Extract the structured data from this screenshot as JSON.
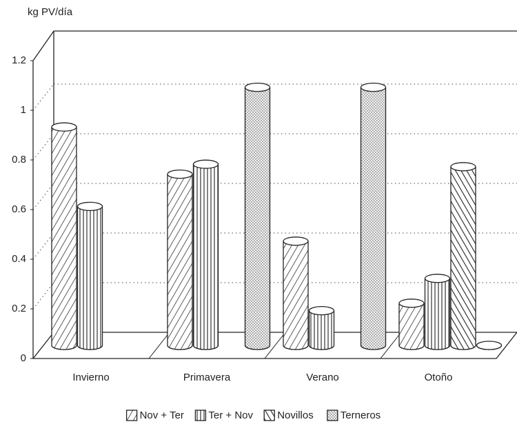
{
  "chart_data": {
    "type": "bar3d",
    "y_label": "kg PV/día",
    "categories": [
      "Invierno",
      "Primavera",
      "Verano",
      "Otoño"
    ],
    "series": [
      {
        "name": "Nov + Ter",
        "pattern": "diag",
        "values": [
          0.88,
          0.69,
          0.42,
          0.17
        ]
      },
      {
        "name": "Ter + Nov",
        "pattern": "vert",
        "values": [
          0.56,
          0.73,
          0.14,
          0.27
        ]
      },
      {
        "name": "Novillos",
        "pattern": "back",
        "values": [
          null,
          null,
          null,
          0.72
        ]
      },
      {
        "name": "Terneros",
        "pattern": "dots",
        "values": [
          null,
          1.04,
          1.04,
          0
        ]
      }
    ],
    "ylim": [
      0,
      1.2
    ],
    "yticks": [
      0,
      0.2,
      0.4,
      0.6,
      0.8,
      1,
      1.2
    ],
    "grid": true
  }
}
